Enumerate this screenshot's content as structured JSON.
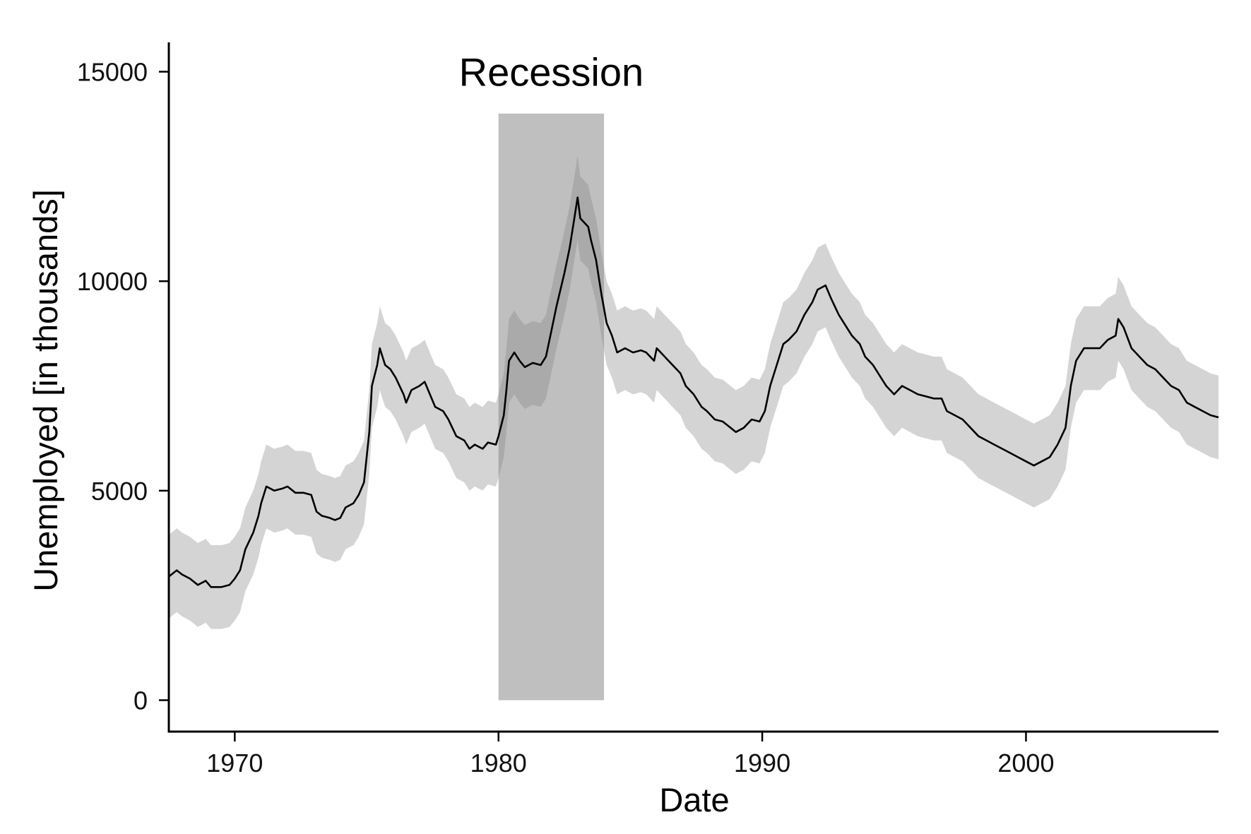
{
  "chart_data": {
    "type": "line",
    "title": "",
    "xlabel": "Date",
    "ylabel": "Unemployed [in thousands]",
    "xlim": [
      1967.5,
      2007.3
    ],
    "ylim": [
      -750,
      15700
    ],
    "x_ticks": [
      1970,
      1980,
      1990,
      2000
    ],
    "x_tick_labels": [
      "1970",
      "1980",
      "1990",
      "2000"
    ],
    "y_ticks": [
      0,
      5000,
      10000,
      15000
    ],
    "y_tick_labels": [
      "0",
      "5000",
      "10000",
      "15000"
    ],
    "grid": false,
    "legend": "none",
    "series": [
      {
        "style": "line with shaded ±1000 band",
        "color": "#000000",
        "band_color": "#d4d4d4",
        "band_halfwidth": 1000,
        "points": [
          [
            1967.5,
            2950
          ],
          [
            1967.8,
            3100
          ],
          [
            1968.0,
            3000
          ],
          [
            1968.3,
            2900
          ],
          [
            1968.6,
            2750
          ],
          [
            1968.9,
            2850
          ],
          [
            1969.1,
            2700
          ],
          [
            1969.5,
            2700
          ],
          [
            1969.8,
            2750
          ],
          [
            1970.0,
            2900
          ],
          [
            1970.2,
            3100
          ],
          [
            1970.4,
            3600
          ],
          [
            1970.7,
            4000
          ],
          [
            1970.9,
            4400
          ],
          [
            1971.0,
            4700
          ],
          [
            1971.2,
            5100
          ],
          [
            1971.5,
            5000
          ],
          [
            1971.8,
            5050
          ],
          [
            1972.0,
            5100
          ],
          [
            1972.3,
            4950
          ],
          [
            1972.6,
            4950
          ],
          [
            1972.9,
            4900
          ],
          [
            1973.1,
            4500
          ],
          [
            1973.3,
            4400
          ],
          [
            1973.6,
            4350
          ],
          [
            1973.8,
            4300
          ],
          [
            1974.0,
            4350
          ],
          [
            1974.2,
            4600
          ],
          [
            1974.5,
            4700
          ],
          [
            1974.7,
            4900
          ],
          [
            1974.9,
            5200
          ],
          [
            1975.1,
            6400
          ],
          [
            1975.2,
            7500
          ],
          [
            1975.4,
            8000
          ],
          [
            1975.5,
            8400
          ],
          [
            1975.7,
            8000
          ],
          [
            1975.9,
            7900
          ],
          [
            1976.1,
            7700
          ],
          [
            1976.4,
            7300
          ],
          [
            1976.5,
            7100
          ],
          [
            1976.7,
            7400
          ],
          [
            1977.0,
            7500
          ],
          [
            1977.2,
            7600
          ],
          [
            1977.4,
            7300
          ],
          [
            1977.6,
            7000
          ],
          [
            1977.9,
            6900
          ],
          [
            1978.1,
            6700
          ],
          [
            1978.4,
            6300
          ],
          [
            1978.7,
            6200
          ],
          [
            1978.9,
            6000
          ],
          [
            1979.1,
            6100
          ],
          [
            1979.4,
            6000
          ],
          [
            1979.6,
            6150
          ],
          [
            1979.9,
            6100
          ],
          [
            1980.0,
            6300
          ],
          [
            1980.2,
            6800
          ],
          [
            1980.3,
            7400
          ],
          [
            1980.4,
            8100
          ],
          [
            1980.6,
            8300
          ],
          [
            1980.8,
            8100
          ],
          [
            1981.0,
            7950
          ],
          [
            1981.3,
            8050
          ],
          [
            1981.6,
            8000
          ],
          [
            1981.8,
            8200
          ],
          [
            1982.0,
            8800
          ],
          [
            1982.2,
            9400
          ],
          [
            1982.5,
            10200
          ],
          [
            1982.7,
            10800
          ],
          [
            1982.9,
            11600
          ],
          [
            1983.0,
            12000
          ],
          [
            1983.1,
            11500
          ],
          [
            1983.4,
            11300
          ],
          [
            1983.5,
            11000
          ],
          [
            1983.7,
            10500
          ],
          [
            1983.9,
            9700
          ],
          [
            1984.1,
            9000
          ],
          [
            1984.3,
            8700
          ],
          [
            1984.5,
            8300
          ],
          [
            1984.8,
            8400
          ],
          [
            1985.1,
            8300
          ],
          [
            1985.4,
            8350
          ],
          [
            1985.6,
            8300
          ],
          [
            1985.9,
            8100
          ],
          [
            1986.0,
            8400
          ],
          [
            1986.3,
            8200
          ],
          [
            1986.6,
            8000
          ],
          [
            1986.9,
            7800
          ],
          [
            1987.1,
            7500
          ],
          [
            1987.4,
            7300
          ],
          [
            1987.7,
            7000
          ],
          [
            1987.9,
            6900
          ],
          [
            1988.2,
            6700
          ],
          [
            1988.5,
            6650
          ],
          [
            1988.8,
            6500
          ],
          [
            1989.0,
            6400
          ],
          [
            1989.3,
            6500
          ],
          [
            1989.6,
            6700
          ],
          [
            1989.9,
            6650
          ],
          [
            1990.1,
            6900
          ],
          [
            1990.3,
            7500
          ],
          [
            1990.6,
            8100
          ],
          [
            1990.8,
            8500
          ],
          [
            1991.0,
            8600
          ],
          [
            1991.3,
            8800
          ],
          [
            1991.6,
            9200
          ],
          [
            1991.9,
            9500
          ],
          [
            1992.1,
            9800
          ],
          [
            1992.4,
            9900
          ],
          [
            1992.6,
            9600
          ],
          [
            1992.9,
            9200
          ],
          [
            1993.1,
            9000
          ],
          [
            1993.4,
            8700
          ],
          [
            1993.7,
            8500
          ],
          [
            1993.9,
            8200
          ],
          [
            1994.2,
            8000
          ],
          [
            1994.5,
            7700
          ],
          [
            1994.7,
            7500
          ],
          [
            1995.0,
            7300
          ],
          [
            1995.3,
            7500
          ],
          [
            1995.6,
            7400
          ],
          [
            1995.9,
            7300
          ],
          [
            1996.2,
            7250
          ],
          [
            1996.5,
            7200
          ],
          [
            1996.8,
            7200
          ],
          [
            1997.0,
            6900
          ],
          [
            1997.3,
            6800
          ],
          [
            1997.6,
            6700
          ],
          [
            1997.9,
            6500
          ],
          [
            1998.2,
            6300
          ],
          [
            1998.5,
            6200
          ],
          [
            1998.8,
            6100
          ],
          [
            1999.1,
            6000
          ],
          [
            1999.4,
            5900
          ],
          [
            1999.7,
            5800
          ],
          [
            2000.0,
            5700
          ],
          [
            2000.3,
            5600
          ],
          [
            2000.6,
            5700
          ],
          [
            2000.9,
            5800
          ],
          [
            2001.2,
            6100
          ],
          [
            2001.5,
            6500
          ],
          [
            2001.7,
            7500
          ],
          [
            2001.9,
            8100
          ],
          [
            2002.2,
            8400
          ],
          [
            2002.5,
            8400
          ],
          [
            2002.8,
            8400
          ],
          [
            2003.1,
            8600
          ],
          [
            2003.4,
            8700
          ],
          [
            2003.5,
            9100
          ],
          [
            2003.7,
            8900
          ],
          [
            2004.0,
            8400
          ],
          [
            2004.3,
            8200
          ],
          [
            2004.6,
            8000
          ],
          [
            2004.9,
            7900
          ],
          [
            2005.2,
            7700
          ],
          [
            2005.5,
            7500
          ],
          [
            2005.8,
            7400
          ],
          [
            2006.1,
            7100
          ],
          [
            2006.4,
            7000
          ],
          [
            2006.7,
            6900
          ],
          [
            2007.0,
            6800
          ],
          [
            2007.3,
            6750
          ]
        ]
      }
    ],
    "shaded_regions": [
      {
        "x0": 1980.0,
        "x1": 1984.0,
        "y0": 0,
        "y1": 14000,
        "color": "#808080",
        "opacity": 0.5
      }
    ],
    "annotations": [
      {
        "text": "Recession",
        "x": 1982.0,
        "y": 15000
      }
    ]
  }
}
